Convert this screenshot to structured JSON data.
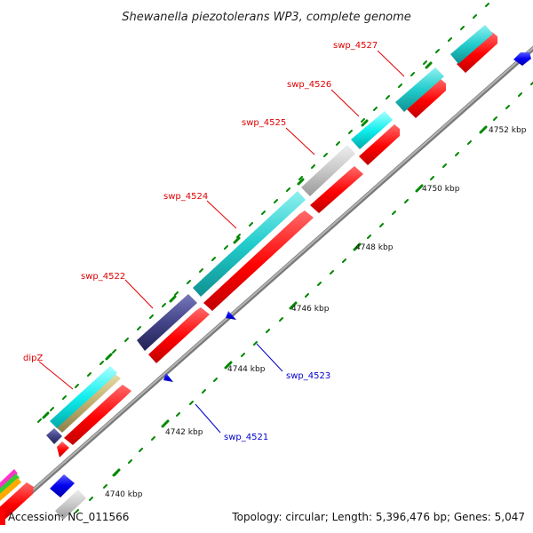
{
  "title": "Shewanella piezotolerans WP3, complete genome",
  "footer": {
    "accession": "Accession: NC_011566",
    "summary": "Topology: circular; Length: 5,396,476 bp; Genes: 5,047"
  },
  "ticks": [
    "4740 kbp",
    "4742 kbp",
    "4744 kbp",
    "4746 kbp",
    "4748 kbp",
    "4750 kbp",
    "4752 kbp"
  ],
  "genes": [
    {
      "name": "dipZ",
      "strand": "+"
    },
    {
      "name": "swp_4521",
      "strand": "-"
    },
    {
      "name": "swp_4522",
      "strand": "+"
    },
    {
      "name": "swp_4523",
      "strand": "-"
    },
    {
      "name": "swp_4524",
      "strand": "+"
    },
    {
      "name": "swp_4525",
      "strand": "+"
    },
    {
      "name": "swp_4526",
      "strand": "+"
    },
    {
      "name": "swp_4527",
      "strand": "+"
    }
  ],
  "colors": {
    "forward_gene": "#ff0000",
    "reverse_gene": "#0000ee",
    "cyan_feature": "#22cccc",
    "navy_feature": "#444488",
    "grey_feature": "#c8c8c8",
    "khaki_feature": "#c0b070",
    "backbone": "#9a9a9a",
    "tick": "#008800"
  }
}
